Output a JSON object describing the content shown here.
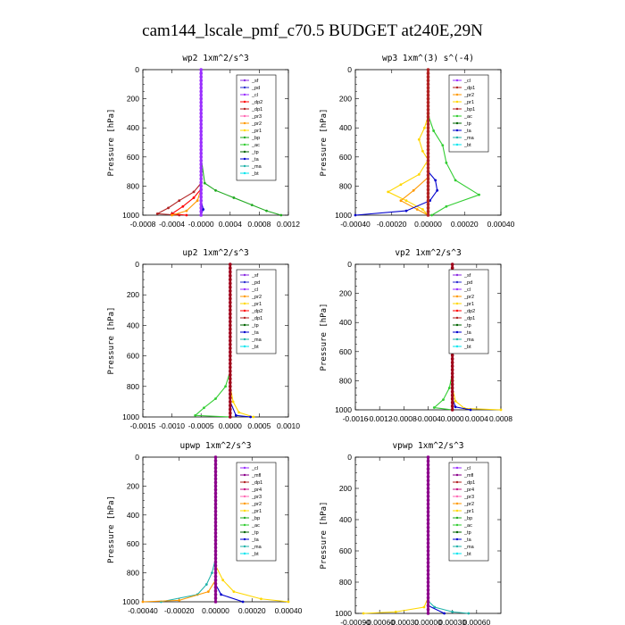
{
  "page_title": "cam144_lscale_pmf_c70.5  BUDGET at240E,29N",
  "colors": {
    "sf": "#8a2be2",
    "pd": "#2f2fd0",
    "cl": "#9b30ff",
    "dp2": "#ff0000",
    "dp1": "#b22222",
    "pr3": "#ff69b4",
    "pr2": "#ff9900",
    "pr1": "#ffd700",
    "bp": "#22aa22",
    "ac": "#32cd32",
    "tp": "#006400",
    "ta": "#0000cd",
    "ma": "#20b2aa",
    "bt": "#00e5ee",
    "mfl": "#8b008b",
    "pr4": "#c71585",
    "main": "#a0001a"
  },
  "chart_data": [
    {
      "type": "line",
      "title": "wp2   1xm^2/s^3",
      "ylabel": "Pressure  [hPa]",
      "xlim": [
        -0.0008,
        0.0012
      ],
      "ylim": [
        1000,
        0
      ],
      "xticks": [
        -0.0008,
        -0.0004,
        0.0,
        0.0004,
        0.0008,
        0.0012
      ],
      "xtick_labels": [
        "-0.0008",
        "-0.0004",
        "-0.0000",
        "0.0004",
        "0.0008",
        "0.0012"
      ],
      "yticks": [
        0,
        200,
        400,
        600,
        800,
        1000
      ],
      "ytick_labels": [
        "0",
        "200",
        "400",
        "600",
        "800",
        "1000"
      ],
      "legend": [
        "_sf",
        "_pd",
        "_cl",
        "_dp2",
        "_dp1",
        "_pr3",
        "_pr2",
        "_pr1",
        "_bp",
        "_ac",
        "_tp",
        "_ta",
        "_ma",
        "_bt"
      ],
      "series": [
        {
          "name": "_bp",
          "color_key": "bp",
          "points": [
            [
              0,
              0
            ],
            [
              0,
              600
            ],
            [
              5e-05,
              780
            ],
            [
              0.0002,
              830
            ],
            [
              0.00045,
              880
            ],
            [
              0.0007,
              930
            ],
            [
              0.0009,
              970
            ],
            [
              0.0011,
              1000
            ]
          ]
        },
        {
          "name": "_dp1",
          "color_key": "dp1",
          "points": [
            [
              0,
              0
            ],
            [
              0,
              780
            ],
            [
              -0.0001,
              840
            ],
            [
              -0.0003,
              900
            ],
            [
              -0.00045,
              950
            ],
            [
              -0.0006,
              990
            ],
            [
              -0.0003,
              1000
            ]
          ]
        },
        {
          "name": "_dp2",
          "color_key": "dp2",
          "points": [
            [
              0,
              0
            ],
            [
              0,
              820
            ],
            [
              -0.0001,
              880
            ],
            [
              -0.00025,
              940
            ],
            [
              -0.0004,
              990
            ],
            [
              -0.0002,
              1000
            ]
          ]
        },
        {
          "name": "_pr2",
          "color_key": "pr2",
          "points": [
            [
              0,
              0
            ],
            [
              0,
              820
            ],
            [
              -5e-05,
              900
            ],
            [
              -0.0002,
              970
            ],
            [
              -0.0004,
              1000
            ]
          ]
        },
        {
          "name": "_ta",
          "color_key": "ta",
          "points": [
            [
              0,
              0
            ],
            [
              0,
              900
            ],
            [
              3e-05,
              960
            ],
            [
              0,
              1000
            ]
          ]
        },
        {
          "name": "_sf",
          "color_key": "sf",
          "points": [
            [
              0,
              0
            ],
            [
              0,
              1000
            ]
          ]
        },
        {
          "name": "_cl",
          "color_key": "cl",
          "points": [
            [
              0,
              0
            ],
            [
              0,
              1000
            ]
          ]
        }
      ]
    },
    {
      "type": "line",
      "title": "wp3   1xm^(3) s^(-4)",
      "ylabel": "Pressure  [hPa]",
      "xlim": [
        -0.0004,
        0.0004
      ],
      "ylim": [
        1000,
        0
      ],
      "xticks": [
        -0.0004,
        -0.0002,
        0.0,
        0.0002,
        0.0004
      ],
      "xtick_labels": [
        "-0.00040",
        "-0.00020",
        "0.00000",
        "0.00020",
        "0.00040"
      ],
      "yticks": [
        0,
        200,
        400,
        600,
        800,
        1000
      ],
      "ytick_labels": [
        "0",
        "200",
        "400",
        "600",
        "800",
        "1000"
      ],
      "legend": [
        "_cl",
        "_dp1",
        "_pr2",
        "_pr1",
        "_bp1",
        "_ac",
        "_tp",
        "_ta",
        "_ma",
        "_bt"
      ],
      "series": [
        {
          "name": "_ac",
          "color_key": "ac",
          "points": [
            [
              0,
              0
            ],
            [
              0,
              310
            ],
            [
              3e-05,
              420
            ],
            [
              8e-05,
              520
            ],
            [
              0.0001,
              640
            ],
            [
              0.00015,
              760
            ],
            [
              0.00028,
              860
            ],
            [
              0.0001,
              940
            ],
            [
              2e-05,
              1000
            ]
          ]
        },
        {
          "name": "_pr1",
          "color_key": "pr1",
          "points": [
            [
              0,
              0
            ],
            [
              0,
              320
            ],
            [
              -2e-05,
              400
            ],
            [
              -5e-05,
              480
            ],
            [
              -3e-05,
              560
            ],
            [
              0,
              620
            ],
            [
              -5e-05,
              720
            ],
            [
              -0.00015,
              790
            ],
            [
              -0.00022,
              840
            ],
            [
              -0.00012,
              900
            ],
            [
              -3e-05,
              960
            ],
            [
              0,
              1000
            ]
          ]
        },
        {
          "name": "_pr2",
          "color_key": "pr2",
          "points": [
            [
              0,
              0
            ],
            [
              0,
              740
            ],
            [
              -8e-05,
              830
            ],
            [
              -0.00015,
              900
            ],
            [
              -6e-05,
              960
            ],
            [
              0,
              1000
            ]
          ]
        },
        {
          "name": "_ta",
          "color_key": "ta",
          "points": [
            [
              0,
              0
            ],
            [
              0,
              700
            ],
            [
              4e-05,
              760
            ],
            [
              5e-05,
              830
            ],
            [
              1e-05,
              900
            ],
            [
              -0.00012,
              970
            ],
            [
              -0.0004,
              1000
            ]
          ]
        },
        {
          "name": "_cl",
          "color_key": "cl",
          "points": [
            [
              0,
              0
            ],
            [
              0,
              1000
            ]
          ]
        },
        {
          "name": "_dp1",
          "color_key": "dp1",
          "points": [
            [
              0,
              0
            ],
            [
              0,
              1000
            ]
          ]
        }
      ]
    },
    {
      "type": "line",
      "title": "up2   1xm^2/s^3",
      "ylabel": "Pressure  [hPa]",
      "xlim": [
        -0.0015,
        0.001
      ],
      "ylim": [
        1000,
        0
      ],
      "xticks": [
        -0.0015,
        -0.001,
        -0.0005,
        0.0,
        0.0005,
        0.001
      ],
      "xtick_labels": [
        "-0.0015",
        "-0.0010",
        "-0.0005",
        "0.0000",
        "0.0005",
        "0.0010"
      ],
      "yticks": [
        0,
        200,
        400,
        600,
        800,
        1000
      ],
      "ytick_labels": [
        "0",
        "200",
        "400",
        "600",
        "800",
        "1000"
      ],
      "legend": [
        "_sf",
        "_pd",
        "_cl",
        "_pr2",
        "_pr1",
        "_dp2",
        "_dp1",
        "_tp",
        "_ta",
        "_ma",
        "_bt"
      ],
      "series": [
        {
          "name": "_dp1",
          "color_key": "ac",
          "points": [
            [
              0,
              0
            ],
            [
              0,
              700
            ],
            [
              -8e-05,
              800
            ],
            [
              -0.00025,
              880
            ],
            [
              -0.00045,
              940
            ],
            [
              -0.0006,
              990
            ],
            [
              0,
              1000
            ]
          ]
        },
        {
          "name": "_pr1",
          "color_key": "pr1",
          "points": [
            [
              0,
              0
            ],
            [
              0,
              800
            ],
            [
              5e-05,
              900
            ],
            [
              0.00015,
              970
            ],
            [
              0.0004,
              1000
            ]
          ]
        },
        {
          "name": "_ta",
          "color_key": "ta",
          "points": [
            [
              0,
              0
            ],
            [
              0,
              900
            ],
            [
              0.0001,
              990
            ],
            [
              0.00035,
              1000
            ]
          ]
        },
        {
          "name": "_sf",
          "color_key": "main",
          "points": [
            [
              0,
              0
            ],
            [
              0,
              1000
            ]
          ]
        }
      ]
    },
    {
      "type": "line",
      "title": "vp2   1xm^2/s^3",
      "ylabel": "Pressure  [hPa]",
      "xlim": [
        -0.0016,
        0.0008
      ],
      "ylim": [
        1000,
        0
      ],
      "xticks": [
        -0.0016,
        -0.0012,
        -0.0008,
        -0.0004,
        0.0,
        0.0004,
        0.0008
      ],
      "xtick_labels": [
        "-0.0016",
        "-0.0012",
        "-0.0008",
        "-0.0004",
        "0.0000",
        "0.0004",
        "0.0008"
      ],
      "yticks": [
        0,
        200,
        400,
        600,
        800,
        1000
      ],
      "ytick_labels": [
        "0",
        "200",
        "400",
        "600",
        "800",
        "1000"
      ],
      "legend": [
        "_sf",
        "_pd",
        "_cl",
        "_pr2",
        "_pr1",
        "_dp2",
        "_dp1",
        "_tp",
        "_ta",
        "_ma",
        "_bt"
      ],
      "series": [
        {
          "name": "_dp1",
          "color_key": "ac",
          "points": [
            [
              0,
              0
            ],
            [
              0,
              750
            ],
            [
              -5e-05,
              850
            ],
            [
              -0.00015,
              930
            ],
            [
              -0.0003,
              985
            ],
            [
              0,
              1000
            ]
          ]
        },
        {
          "name": "_pr1",
          "color_key": "pr1",
          "points": [
            [
              0,
              0
            ],
            [
              0,
              850
            ],
            [
              5e-05,
              940
            ],
            [
              0.0002,
              990
            ],
            [
              0.0008,
              1000
            ]
          ]
        },
        {
          "name": "_ta",
          "color_key": "ta",
          "points": [
            [
              0,
              0
            ],
            [
              0,
              920
            ],
            [
              5e-05,
              980
            ],
            [
              0.0003,
              1000
            ]
          ]
        },
        {
          "name": "_sf",
          "color_key": "main",
          "points": [
            [
              0,
              0
            ],
            [
              0,
              1000
            ]
          ]
        }
      ]
    },
    {
      "type": "line",
      "title": "upwp   1xm^2/s^3",
      "ylabel": "Pressure  [hPa]",
      "xlim": [
        -0.0004,
        0.0004
      ],
      "ylim": [
        1000,
        0
      ],
      "xticks": [
        -0.0004,
        -0.0002,
        0.0,
        0.0002,
        0.0004
      ],
      "xtick_labels": [
        "-0.00040",
        "-0.00020",
        "0.00000",
        "0.00020",
        "0.00040"
      ],
      "yticks": [
        0,
        200,
        400,
        600,
        800,
        1000
      ],
      "ytick_labels": [
        "0",
        "200",
        "400",
        "600",
        "800",
        "1000"
      ],
      "legend": [
        "_cl",
        "_mfl",
        "_dp1",
        "_pr4",
        "_pr3",
        "_pr2",
        "_pr1",
        "_bp",
        "_ac",
        "_tp",
        "_ta",
        "_ma",
        "_bt"
      ],
      "series": [
        {
          "name": "_ac",
          "color_key": "ma",
          "points": [
            [
              0,
              0
            ],
            [
              0,
              700
            ],
            [
              -2e-05,
              800
            ],
            [
              -5e-05,
              880
            ],
            [
              -0.0001,
              950
            ],
            [
              -0.0003,
              1000
            ]
          ]
        },
        {
          "name": "_pr1",
          "color_key": "pr1",
          "points": [
            [
              0,
              0
            ],
            [
              0,
              750
            ],
            [
              4e-05,
              850
            ],
            [
              0.0001,
              930
            ],
            [
              0.00025,
              980
            ],
            [
              0.0004,
              1000
            ]
          ]
        },
        {
          "name": "_pr2",
          "color_key": "pr2",
          "points": [
            [
              0,
              0
            ],
            [
              0,
              850
            ],
            [
              -4e-05,
              930
            ],
            [
              -0.0002,
              990
            ],
            [
              -0.0004,
              1000
            ]
          ]
        },
        {
          "name": "_ta",
          "color_key": "ta",
          "points": [
            [
              0,
              0
            ],
            [
              0,
              880
            ],
            [
              3e-05,
              950
            ],
            [
              0.00015,
              1000
            ]
          ]
        },
        {
          "name": "_cl",
          "color_key": "mfl",
          "points": [
            [
              0,
              0
            ],
            [
              0,
              1000
            ]
          ]
        }
      ]
    },
    {
      "type": "line",
      "title": "vpwp   1xm^2/s^3",
      "ylabel": "Pressure  [hPa]",
      "xlim": [
        -0.0009,
        0.0009
      ],
      "ylim": [
        1000,
        0
      ],
      "xticks": [
        -0.0009,
        -0.0006,
        -0.0003,
        0.0,
        0.0003,
        0.0006
      ],
      "xtick_labels": [
        "-0.00090",
        "-0.00060",
        "-0.00030",
        "0.00000",
        "0.00030",
        "0.00060"
      ],
      "yticks": [
        0,
        200,
        400,
        600,
        800,
        1000
      ],
      "ytick_labels": [
        "0",
        "200",
        "400",
        "600",
        "800",
        "1000"
      ],
      "legend": [
        "_cl",
        "_mfl",
        "_dp1",
        "_pr4",
        "_pr3",
        "_pr2",
        "_pr1",
        "_bp",
        "_ac",
        "_tp",
        "_ta",
        "_ma",
        "_bt"
      ],
      "series": [
        {
          "name": "_pr1",
          "color_key": "pr1",
          "points": [
            [
              0,
              0
            ],
            [
              0,
              900
            ],
            [
              -5e-05,
              960
            ],
            [
              -0.0004,
              990
            ],
            [
              -0.0008,
              1000
            ]
          ]
        },
        {
          "name": "_ac",
          "color_key": "ma",
          "points": [
            [
              0,
              0
            ],
            [
              0,
              920
            ],
            [
              8e-05,
              960
            ],
            [
              0.0003,
              990
            ],
            [
              0.0005,
              1000
            ]
          ]
        },
        {
          "name": "_ta",
          "color_key": "ta",
          "points": [
            [
              0,
              0
            ],
            [
              0,
              950
            ],
            [
              0.0002,
              1000
            ]
          ]
        },
        {
          "name": "_cl",
          "color_key": "mfl",
          "points": [
            [
              0,
              0
            ],
            [
              0,
              1000
            ]
          ]
        }
      ]
    }
  ]
}
